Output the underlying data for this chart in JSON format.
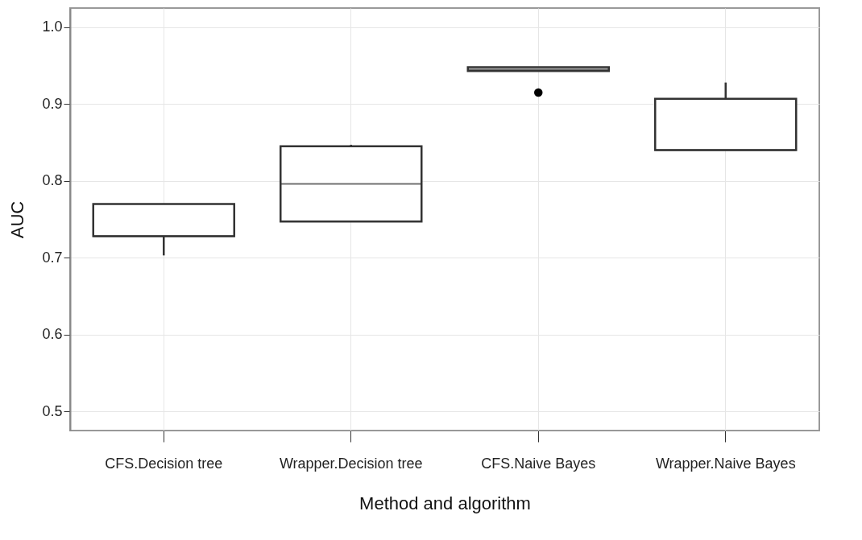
{
  "chart_data": {
    "type": "box",
    "xlabel": "Method and algorithm",
    "ylabel": "AUC",
    "categories": [
      "CFS.Decision tree",
      "Wrapper.Decision tree",
      "CFS.Naive Bayes",
      "Wrapper.Naive Bayes"
    ],
    "boxes": [
      {
        "low": 0.703,
        "q1": 0.728,
        "median": 0.728,
        "q3": 0.77,
        "high": 0.77
      },
      {
        "low": 0.747,
        "q1": 0.747,
        "median": 0.796,
        "q3": 0.845,
        "high": 0.847
      },
      {
        "low": 0.943,
        "q1": 0.943,
        "median": 0.945,
        "q3": 0.948,
        "high": 0.948,
        "outliers": [
          0.915
        ]
      },
      {
        "low": 0.84,
        "q1": 0.84,
        "median": 0.84,
        "q3": 0.907,
        "high": 0.928
      }
    ],
    "ylim": [
      0.475,
      1.025
    ],
    "yticks": [
      0.5,
      0.6,
      0.7,
      0.8,
      0.9,
      {
        "value": 1,
        "label": "1.0"
      }
    ],
    "grid": true
  }
}
